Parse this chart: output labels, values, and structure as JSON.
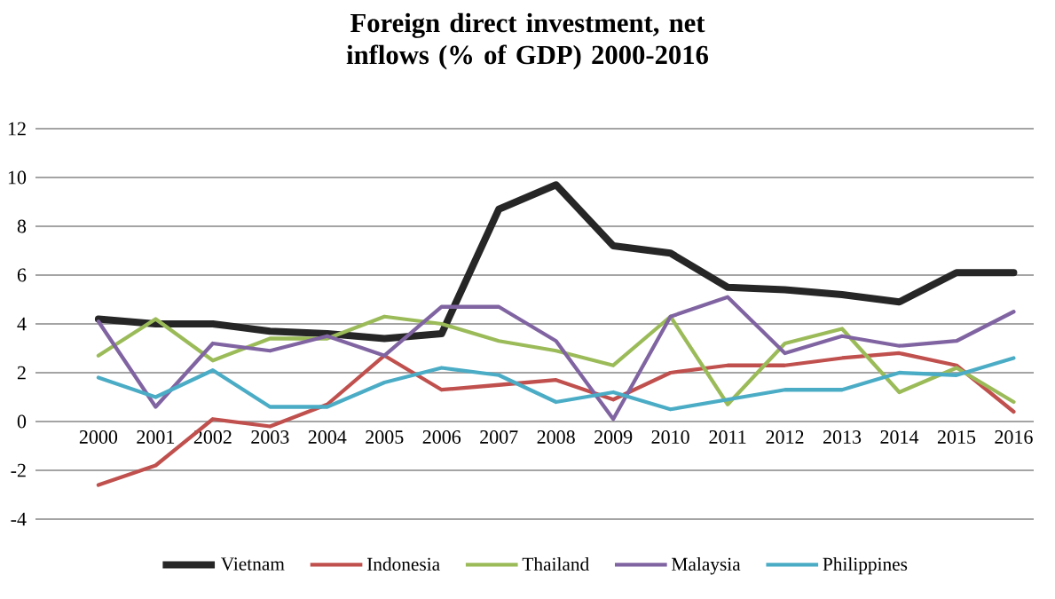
{
  "chart_data": {
    "type": "line",
    "title": "Foreign direct investment, net inflows (% of GDP) 2000-2016",
    "categories": [
      "2000",
      "2001",
      "2002",
      "2003",
      "2004",
      "2005",
      "2006",
      "2007",
      "2008",
      "2009",
      "2010",
      "2011",
      "2012",
      "2013",
      "2014",
      "2015",
      "2016"
    ],
    "series": [
      {
        "name": "Vietnam",
        "color": "#262626",
        "values": [
          4.2,
          4.0,
          4.0,
          3.7,
          3.6,
          3.4,
          3.6,
          8.7,
          9.7,
          7.2,
          6.9,
          5.5,
          5.4,
          5.2,
          4.9,
          6.1,
          6.1
        ]
      },
      {
        "name": "Indonesia",
        "color": "#c0504d",
        "values": [
          -2.6,
          -1.8,
          0.1,
          -0.2,
          0.7,
          2.7,
          1.3,
          1.5,
          1.7,
          0.9,
          2.0,
          2.3,
          2.3,
          2.6,
          2.8,
          2.3,
          0.4
        ]
      },
      {
        "name": "Thailand",
        "color": "#9bbb59",
        "values": [
          2.7,
          4.2,
          2.5,
          3.4,
          3.4,
          4.3,
          4.0,
          3.3,
          2.9,
          2.3,
          4.3,
          0.7,
          3.2,
          3.8,
          1.2,
          2.2,
          0.8
        ]
      },
      {
        "name": "Malaysia",
        "color": "#8064a2",
        "values": [
          4.1,
          0.6,
          3.2,
          2.9,
          3.5,
          2.7,
          4.7,
          4.7,
          3.3,
          0.1,
          4.3,
          5.1,
          2.8,
          3.5,
          3.1,
          3.3,
          4.5
        ]
      },
      {
        "name": "Philippines",
        "color": "#4bacc6",
        "values": [
          1.8,
          1.0,
          2.1,
          0.6,
          0.6,
          1.6,
          2.2,
          1.9,
          0.8,
          1.2,
          0.5,
          0.9,
          1.3,
          1.3,
          2.0,
          1.9,
          2.6
        ]
      }
    ],
    "ylim": [
      -4,
      12
    ],
    "yticks": [
      -4,
      -2,
      0,
      2,
      4,
      6,
      8,
      10,
      12
    ],
    "grid": "y",
    "legend": "bottom",
    "marker": "none",
    "line_style": "solid"
  }
}
